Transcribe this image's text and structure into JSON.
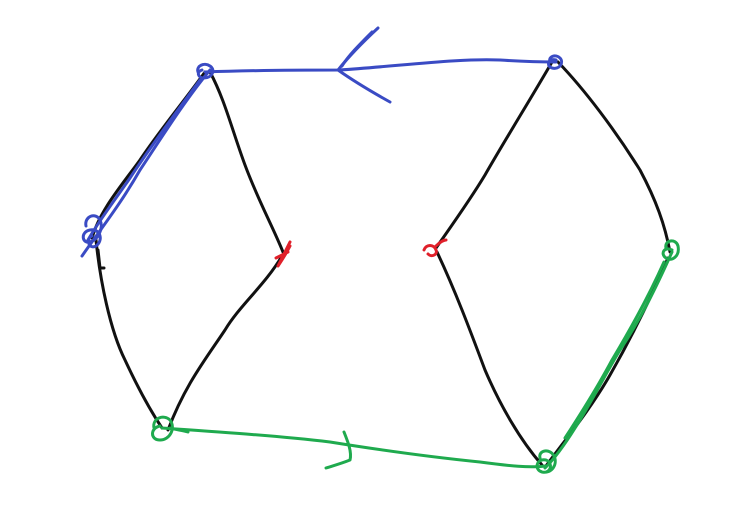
{
  "diagram": {
    "type": "hand-drawn graph",
    "colors": {
      "edge": "#111111",
      "blue_path": "#3a4bc4",
      "green_path": "#1faa4e",
      "red_node": "#e0202a"
    },
    "nodes": [
      {
        "id": "left-top",
        "color": "blue"
      },
      {
        "id": "left-mid-left",
        "color": "blue"
      },
      {
        "id": "left-bottom",
        "color": "green"
      },
      {
        "id": "left-mid-right",
        "color": "red"
      },
      {
        "id": "right-top",
        "color": "blue"
      },
      {
        "id": "right-mid-left",
        "color": "red"
      },
      {
        "id": "right-mid-right",
        "color": "green"
      },
      {
        "id": "right-bottom",
        "color": "green"
      }
    ],
    "paths": [
      {
        "id": "blue-path",
        "color": "blue",
        "direction": "left",
        "arrow": "arrowhead"
      },
      {
        "id": "green-path",
        "color": "green",
        "direction": "right",
        "arrow": "arrowhead"
      }
    ]
  }
}
